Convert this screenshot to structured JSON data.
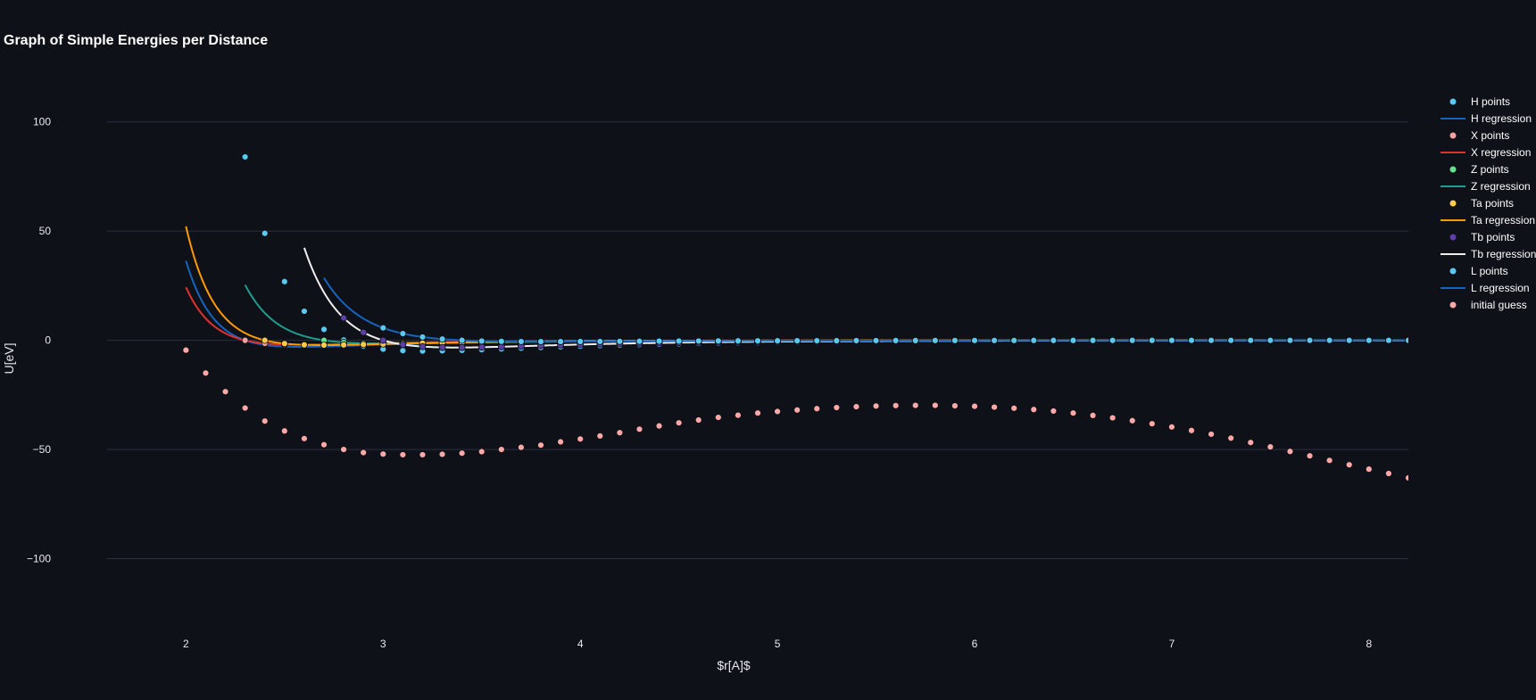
{
  "chart_data": {
    "type": "line",
    "title": "Graph of Simple Energies per Distance",
    "xlabel": "$r[A]$",
    "ylabel": "U[eV]",
    "xlim": [
      1.6,
      8.2
    ],
    "ylim": [
      -130,
      115
    ],
    "x_ticks": [
      2,
      3,
      4,
      5,
      6,
      7,
      8
    ],
    "x_tick_labels": [
      "2",
      "3",
      "4",
      "5",
      "6",
      "7",
      "8"
    ],
    "y_ticks": [
      100,
      50,
      0,
      -50,
      -100
    ],
    "y_tick_labels": [
      "100",
      "50",
      "0",
      "−50",
      "−100"
    ],
    "grid": "horizontal",
    "legend_position": "right",
    "series": [
      {
        "name": "H points",
        "kind": "markers",
        "color": "#5bc8f0",
        "sigma": 2.3,
        "epsilon": 3.0,
        "x_start": 2.3,
        "x_end": 8.2,
        "x": [
          2.3,
          2.4,
          2.5,
          2.6,
          2.7,
          2.8,
          2.9,
          3.0,
          3.1,
          3.2,
          3.3,
          3.4,
          3.5,
          3.6,
          3.7,
          3.8,
          3.9,
          4.0,
          4.1,
          4.2,
          4.3,
          4.4,
          4.5,
          4.6,
          4.7,
          4.8,
          4.9,
          5.0,
          5.1,
          5.2,
          5.3,
          5.4,
          5.5,
          5.6,
          5.7,
          5.8,
          5.9,
          6.0,
          6.1,
          6.2,
          6.3,
          6.4,
          6.5,
          6.6,
          6.7,
          6.8,
          6.9,
          7.0,
          7.1,
          7.2,
          7.3,
          7.4,
          7.5,
          7.6,
          7.7,
          7.8,
          7.9,
          8.0,
          8.1,
          8.2
        ],
        "y": [
          84.0,
          49.0,
          26.9,
          13.3,
          5.0,
          0.15,
          -2.6,
          -4.06,
          -4.73,
          -4.92,
          -4.83,
          -4.59,
          -4.28,
          -3.94,
          -3.59,
          -3.27,
          -2.96,
          -2.67,
          -2.41,
          -2.18,
          -1.96,
          -1.77,
          -1.6,
          -1.45,
          -1.31,
          -1.18,
          -1.07,
          -0.97,
          -0.88,
          -0.8,
          -0.73,
          -0.67,
          -0.61,
          -0.56,
          -0.51,
          -0.46,
          -0.43,
          -0.39,
          -0.36,
          -0.33,
          -0.3,
          -0.28,
          -0.26,
          -0.24,
          -0.22,
          -0.2,
          -0.19,
          -0.17,
          -0.16,
          -0.15,
          -0.14,
          -0.13,
          -0.12,
          -0.11,
          -0.1,
          -0.09,
          -0.09,
          -0.08,
          -0.07,
          -0.07
        ]
      },
      {
        "name": "H regression",
        "kind": "line",
        "color": "#1565c0",
        "sigma": 2.3,
        "epsilon": 3.0,
        "x_start": 2.0,
        "x_end": 8.2
      },
      {
        "name": "X points",
        "kind": "markers",
        "color": "#f4a0a0",
        "sigma": 2.3,
        "epsilon": 2.0,
        "x_start": 2.3,
        "x_end": 8.2
      },
      {
        "name": "X regression",
        "kind": "line",
        "color": "#e03030",
        "sigma": 2.3,
        "epsilon": 2.0,
        "x_start": 2.0,
        "x_end": 8.2
      },
      {
        "name": "Z points",
        "kind": "markers",
        "color": "#66e08c",
        "sigma": 2.7,
        "epsilon": 1.5,
        "x_start": 2.7,
        "x_end": 8.2
      },
      {
        "name": "Z regression",
        "kind": "line",
        "color": "#1f9c8c",
        "sigma": 2.7,
        "epsilon": 1.5,
        "x_start": 2.3,
        "x_end": 8.2
      },
      {
        "name": "Ta points",
        "kind": "markers",
        "color": "#ffc94a",
        "sigma": 2.4,
        "epsilon": 2.2,
        "x_start": 2.4,
        "x_end": 8.2
      },
      {
        "name": "Ta regression",
        "kind": "line",
        "color": "#ff9900",
        "sigma": 2.4,
        "epsilon": 2.2,
        "x_start": 2.0,
        "x_end": 8.2
      },
      {
        "name": "Tb points",
        "kind": "markers",
        "color": "#5d3fa8",
        "sigma": 3.0,
        "epsilon": 3.3,
        "x_start": 2.8,
        "x_end": 8.2
      },
      {
        "name": "Tb regression",
        "kind": "line",
        "color": "#eeeeee",
        "sigma": 3.0,
        "epsilon": 3.3,
        "x_start": 2.6,
        "x_end": 8.2
      },
      {
        "name": "L points",
        "kind": "markers",
        "color": "#5bc8f0",
        "sigma": 3.4,
        "epsilon": 0.6,
        "x_start": 3.0,
        "x_end": 8.2
      },
      {
        "name": "L regression",
        "kind": "line",
        "color": "#1565c0",
        "sigma": 3.4,
        "epsilon": 0.6,
        "x_start": 2.7,
        "x_end": 8.2
      },
      {
        "name": "initial guess",
        "kind": "markers",
        "color": "#ffa8a8",
        "x": [
          2.0,
          2.1,
          2.2,
          2.3,
          2.4,
          2.5,
          2.6,
          2.7,
          2.8,
          2.9,
          3.0,
          3.1,
          3.2,
          3.3,
          3.4,
          3.5,
          3.6,
          3.7,
          3.8,
          3.9,
          4.0,
          4.1,
          4.2,
          4.3,
          4.4,
          4.5,
          4.6,
          4.7,
          4.8,
          4.9,
          5.0,
          5.1,
          5.2,
          5.3,
          5.4,
          5.5,
          5.6,
          5.7,
          5.8,
          5.9,
          6.0,
          6.1,
          6.2,
          6.3,
          6.4,
          6.5,
          6.6,
          6.7,
          6.8,
          6.9,
          7.0,
          7.1,
          7.2,
          7.3,
          7.4,
          7.5,
          7.6,
          7.7,
          7.8,
          7.9,
          8.0,
          8.1,
          8.2
        ],
        "y": [
          -4.5,
          -15,
          -23.5,
          -31,
          -37,
          -41.5,
          -45,
          -47.8,
          -50,
          -51.4,
          -52.1,
          -52.4,
          -52.4,
          -52.2,
          -51.7,
          -51,
          -50,
          -49,
          -48,
          -46.5,
          -45.2,
          -43.8,
          -42.3,
          -40.7,
          -39.2,
          -37.8,
          -36.5,
          -35.3,
          -34.3,
          -33.3,
          -32.6,
          -31.9,
          -31.3,
          -30.8,
          -30.4,
          -30.1,
          -29.9,
          -29.8,
          -29.8,
          -30,
          -30.2,
          -30.6,
          -31.1,
          -31.7,
          -32.4,
          -33.3,
          -34.4,
          -35.5,
          -36.8,
          -38.2,
          -39.7,
          -41.3,
          -43,
          -44.8,
          -46.8,
          -48.8,
          -50.9,
          -52.9,
          -55,
          -57,
          -59,
          -61,
          -63
        ]
      }
    ]
  }
}
